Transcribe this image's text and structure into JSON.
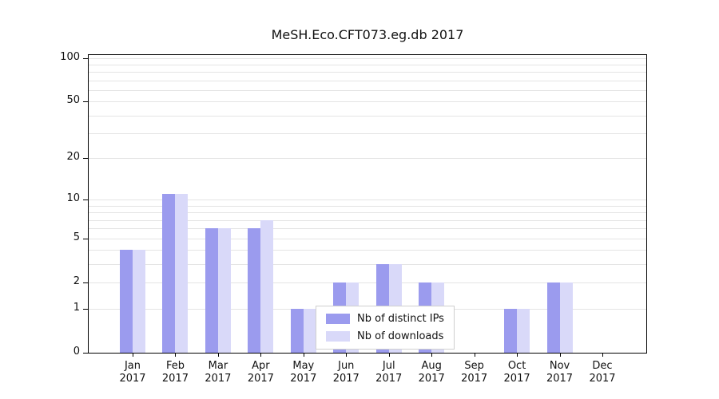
{
  "chart_data": {
    "type": "bar",
    "title": "MeSH.Eco.CFT073.eg.db 2017",
    "categories": [
      "Jan",
      "Feb",
      "Mar",
      "Apr",
      "May",
      "Jun",
      "Jul",
      "Aug",
      "Sep",
      "Oct",
      "Nov",
      "Dec"
    ],
    "year": "2017",
    "series": [
      {
        "name": "Nb of distinct IPs",
        "color": "#9b9bee",
        "values": [
          4,
          11,
          6,
          6,
          1,
          2,
          3,
          2,
          0,
          1,
          2,
          0
        ]
      },
      {
        "name": "Nb of downloads",
        "color": "#d9d9f9",
        "values": [
          4,
          11,
          6,
          7,
          1,
          2,
          3,
          2,
          0,
          1,
          2,
          0
        ]
      }
    ],
    "y_ticks": [
      0,
      1,
      2,
      5,
      10,
      20,
      50,
      100
    ],
    "ylim": [
      0,
      100
    ],
    "scale": "log1p",
    "gridlines": [
      1,
      2,
      3,
      4,
      5,
      6,
      7,
      8,
      9,
      10,
      20,
      30,
      40,
      50,
      60,
      70,
      80,
      90,
      100
    ],
    "grid": "horizontal-minor",
    "legend": {
      "items": [
        "Nb of distinct IPs",
        "Nb of downloads"
      ],
      "position": "inside-bottom-center"
    }
  }
}
